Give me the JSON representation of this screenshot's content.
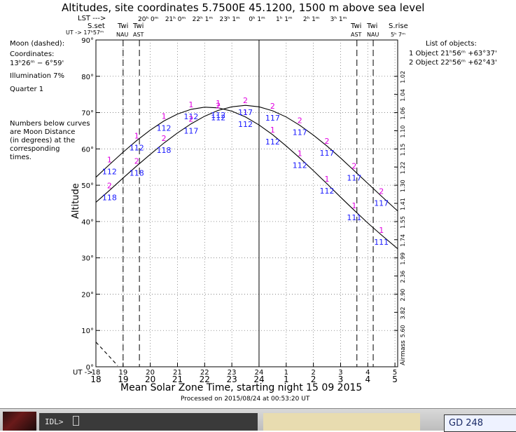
{
  "header": {
    "title": "Altitudes, site coordinates    5.7500E  45.1200, 1500 m above sea level",
    "lst_label": "LST --->",
    "lst_ticks": [
      "20ʰ 0ᵐ",
      "21ʰ 0ᵐ",
      "22ʰ 1ᵐ",
      "23ʰ 1ᵐ",
      "0ʰ 1ᵐ",
      "1ʰ 1ᵐ",
      "2ʰ 1ᵐ",
      "3ʰ 1ᵐ"
    ],
    "ut_label": "UT -> 17ʰ57ᵐ",
    "sset": "S.set",
    "srise": "S.rise",
    "srise_time": "5ʰ 7ᵐ",
    "twi_left": [
      "Twi",
      "Twi"
    ],
    "twi_left_sub": [
      "NAU",
      "AST"
    ],
    "twi_right": [
      "Twi",
      "Twi"
    ],
    "twi_right_sub": [
      "AST",
      "NAU"
    ]
  },
  "left_info": {
    "moon": "Moon (dashed):",
    "coord_label": "Coordinates:",
    "coord_value": "13ʰ26ᵐ  − 6°59'",
    "illumination": "Illumination   7%",
    "quarter": "Quarter      1",
    "note": [
      "Numbers below curves",
      "are Moon Distance",
      "(in degrees) at the",
      "corresponding",
      "times."
    ]
  },
  "objects": {
    "title": "List of objects:",
    "items": [
      "1 Object 21ʰ56ᵐ +63°37'",
      "2 Object 22ʰ56ᵐ +62°43'"
    ]
  },
  "footer": {
    "xlabel": "Mean Solar Zone Time, starting night 15 09 2015",
    "processed": "Processed on 2015/08/24 at 00:53:20 UT",
    "ut_prefix": "UT ->"
  },
  "taskbar": {
    "prompt": "IDL>",
    "right_label": "GD 248"
  },
  "chart_data": {
    "type": "line",
    "ylabel": "Altitude",
    "ylim": [
      0,
      90
    ],
    "xlim": [
      18,
      29.1
    ],
    "y_ticks": [
      "0°",
      "10°",
      "20°",
      "30°",
      "40°",
      "50°",
      "60°",
      "70°",
      "80°",
      "90°"
    ],
    "x_ticks_top": [
      "18",
      "19",
      "20",
      "21",
      "22",
      "23",
      "24",
      "1",
      "2",
      "3",
      "4",
      "5"
    ],
    "x_ticks_bottom": [
      "18",
      "19",
      "20",
      "21",
      "22",
      "23",
      "24",
      "1",
      "2",
      "3",
      "4",
      "5"
    ],
    "airmass_label": "Airmass",
    "airmass_ticks": [
      {
        "alt": 70,
        "label": "1.06"
      },
      {
        "alt": 65,
        "label": "1.10"
      },
      {
        "alt": 60,
        "label": "1.15"
      },
      {
        "alt": 55,
        "label": "1.22"
      },
      {
        "alt": 50,
        "label": "1.30"
      },
      {
        "alt": 45,
        "label": "1.41"
      },
      {
        "alt": 40,
        "label": "1.55"
      },
      {
        "alt": 35,
        "label": "1.74"
      },
      {
        "alt": 30,
        "label": "1.99"
      },
      {
        "alt": 25,
        "label": "2.36"
      },
      {
        "alt": 20,
        "label": "2.90"
      },
      {
        "alt": 15,
        "label": "3.82"
      },
      {
        "alt": 10,
        "label": "5.60"
      },
      {
        "alt": 75,
        "label": "1.04"
      },
      {
        "alt": 80,
        "label": "1.02"
      }
    ],
    "vertical_lines": [
      {
        "x": 19.0,
        "style": "dash"
      },
      {
        "x": 19.6,
        "style": "dash"
      },
      {
        "x": 24.0,
        "style": "solid"
      },
      {
        "x": 27.6,
        "style": "dash"
      },
      {
        "x": 28.2,
        "style": "dash"
      }
    ],
    "series": [
      {
        "name": "1",
        "x": [
          18.0,
          18.5,
          19.0,
          19.5,
          20.0,
          20.5,
          21.0,
          21.5,
          22.0,
          22.5,
          23.0,
          23.5,
          24.0,
          24.5,
          25.0,
          25.5,
          26.0,
          26.5,
          27.0,
          27.5,
          28.0,
          28.5,
          29.1
        ],
        "y": [
          52.2,
          55.7,
          59.1,
          62.3,
          65.2,
          67.7,
          69.6,
          70.9,
          71.5,
          71.3,
          70.4,
          68.8,
          66.6,
          63.9,
          60.8,
          57.5,
          54.0,
          50.4,
          46.7,
          43.1,
          39.6,
          36.3,
          32.5
        ]
      },
      {
        "name": "2",
        "x": [
          18.0,
          18.5,
          19.0,
          19.5,
          20.0,
          20.5,
          21.0,
          21.5,
          22.0,
          22.5,
          23.0,
          23.5,
          24.0,
          24.5,
          25.0,
          25.5,
          26.0,
          26.5,
          27.0,
          27.5,
          28.0,
          28.5,
          29.1
        ],
        "y": [
          45.3,
          48.6,
          52.0,
          55.3,
          58.5,
          61.6,
          64.4,
          66.9,
          69.0,
          70.6,
          71.6,
          72.0,
          71.6,
          70.5,
          68.8,
          66.5,
          63.8,
          60.8,
          57.5,
          54.0,
          50.5,
          47.0,
          42.9
        ]
      },
      {
        "name": "Moon",
        "style": "dashed",
        "x": [
          18.0,
          18.4,
          18.8
        ],
        "y": [
          6.8,
          3.6,
          0.3
        ]
      }
    ],
    "markers": [
      {
        "series": "1",
        "x": 18.5,
        "label": "1",
        "dist": "112"
      },
      {
        "series": "1",
        "x": 19.5,
        "label": "1",
        "dist": "112"
      },
      {
        "series": "1",
        "x": 20.5,
        "label": "1",
        "dist": "112"
      },
      {
        "series": "1",
        "x": 21.5,
        "label": "1",
        "dist": "112"
      },
      {
        "series": "1",
        "x": 22.5,
        "label": "1",
        "dist": "112"
      },
      {
        "series": "1",
        "x": 23.5,
        "label": "1",
        "dist": "112"
      },
      {
        "series": "1",
        "x": 24.5,
        "label": "1",
        "dist": "112"
      },
      {
        "series": "1",
        "x": 25.5,
        "label": "1",
        "dist": "112"
      },
      {
        "series": "1",
        "x": 26.5,
        "label": "1",
        "dist": "112"
      },
      {
        "series": "1",
        "x": 27.5,
        "label": "1",
        "dist": "111"
      },
      {
        "series": "1",
        "x": 28.5,
        "label": "1",
        "dist": "111"
      },
      {
        "series": "2",
        "x": 18.5,
        "label": "2",
        "dist": "118"
      },
      {
        "series": "2",
        "x": 19.5,
        "label": "2",
        "dist": "118"
      },
      {
        "series": "2",
        "x": 20.5,
        "label": "2",
        "dist": "118"
      },
      {
        "series": "2",
        "x": 21.5,
        "label": "2",
        "dist": "117"
      },
      {
        "series": "2",
        "x": 22.5,
        "label": "2",
        "dist": "112"
      },
      {
        "series": "2",
        "x": 23.5,
        "label": "2",
        "dist": "117"
      },
      {
        "series": "2",
        "x": 24.5,
        "label": "2",
        "dist": "117"
      },
      {
        "series": "2",
        "x": 25.5,
        "label": "2",
        "dist": "117"
      },
      {
        "series": "2",
        "x": 26.5,
        "label": "2",
        "dist": "117"
      },
      {
        "series": "2",
        "x": 27.5,
        "label": "2",
        "dist": "117"
      },
      {
        "series": "2",
        "x": 28.5,
        "label": "2",
        "dist": "117"
      }
    ],
    "grid": true,
    "colors": {
      "curve": "#000000",
      "label": "#e000e0",
      "distance": "#1a1aff"
    }
  }
}
